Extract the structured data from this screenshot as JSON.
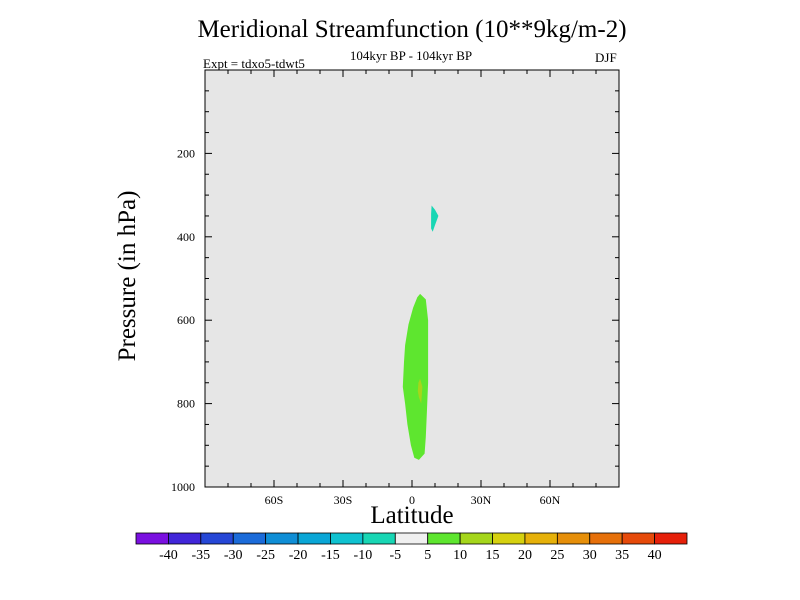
{
  "chart_data": {
    "type": "contour",
    "title": "Meridional Streamfunction (10**9kg/m-2)",
    "subtitle": "104kyr BP - 104kyr BP",
    "left_string": "Expt = tdxo5-tdwt5",
    "right_string": "DJF",
    "xlabel": "Latitude",
    "ylabel": "Pressure (in hPa)",
    "x_range": [
      -90,
      90
    ],
    "y_range": [
      0,
      1000
    ],
    "y_reversed": true,
    "x_ticks": [
      {
        "value": -60,
        "label": "60S"
      },
      {
        "value": -30,
        "label": "30S"
      },
      {
        "value": 0,
        "label": "0"
      },
      {
        "value": 30,
        "label": "30N"
      },
      {
        "value": 60,
        "label": "60N"
      }
    ],
    "y_ticks": [
      {
        "value": 200,
        "label": "200"
      },
      {
        "value": 400,
        "label": "400"
      },
      {
        "value": 600,
        "label": "600"
      },
      {
        "value": 800,
        "label": "800"
      },
      {
        "value": 1000,
        "label": "1000"
      }
    ],
    "background_color": "#e6e6e6",
    "filled_regions": [
      {
        "level": "5 to 10",
        "color": "#5ee62f",
        "polygon": [
          [
            3.5,
            537
          ],
          [
            6,
            550
          ],
          [
            7,
            600
          ],
          [
            7,
            680
          ],
          [
            7,
            750
          ],
          [
            6.5,
            820
          ],
          [
            6,
            880
          ],
          [
            5.5,
            920
          ],
          [
            3,
            935
          ],
          [
            1,
            930
          ],
          [
            -0.5,
            900
          ],
          [
            -2,
            850
          ],
          [
            -3,
            800
          ],
          [
            -4,
            760
          ],
          [
            -3.5,
            700
          ],
          [
            -3,
            660
          ],
          [
            -1.5,
            610
          ],
          [
            0.5,
            570
          ],
          [
            2.3,
            545
          ]
        ]
      },
      {
        "level": "10 to 15",
        "color": "#a5d61b",
        "polygon": [
          [
            3.5,
            740
          ],
          [
            4.5,
            760
          ],
          [
            4,
            800
          ],
          [
            3,
            785
          ],
          [
            2.5,
            770
          ],
          [
            2.8,
            750
          ]
        ]
      },
      {
        "level": "-10 to -5",
        "color": "#18d6b4",
        "polygon": [
          [
            8.5,
            325
          ],
          [
            10,
            335
          ],
          [
            11.5,
            350
          ],
          [
            10,
            372
          ],
          [
            9,
            388
          ],
          [
            8.3,
            380
          ],
          [
            8.3,
            345
          ]
        ]
      }
    ],
    "colorbar": {
      "labels": [
        "-40",
        "-35",
        "-30",
        "-25",
        "-20",
        "-15",
        "-10",
        "-5",
        "5",
        "10",
        "15",
        "20",
        "25",
        "30",
        "35",
        "40"
      ],
      "colors": [
        "#7a10e0",
        "#4126d9",
        "#2647d6",
        "#1b6bd9",
        "#0f8ed6",
        "#0aa6d6",
        "#0fc2d0",
        "#18d6b4",
        "#f0f0f0",
        "#5ee62f",
        "#a5d61b",
        "#d6d10f",
        "#e6b10a",
        "#e68f0a",
        "#e6700a",
        "#e64a0a",
        "#e6200a"
      ]
    }
  }
}
